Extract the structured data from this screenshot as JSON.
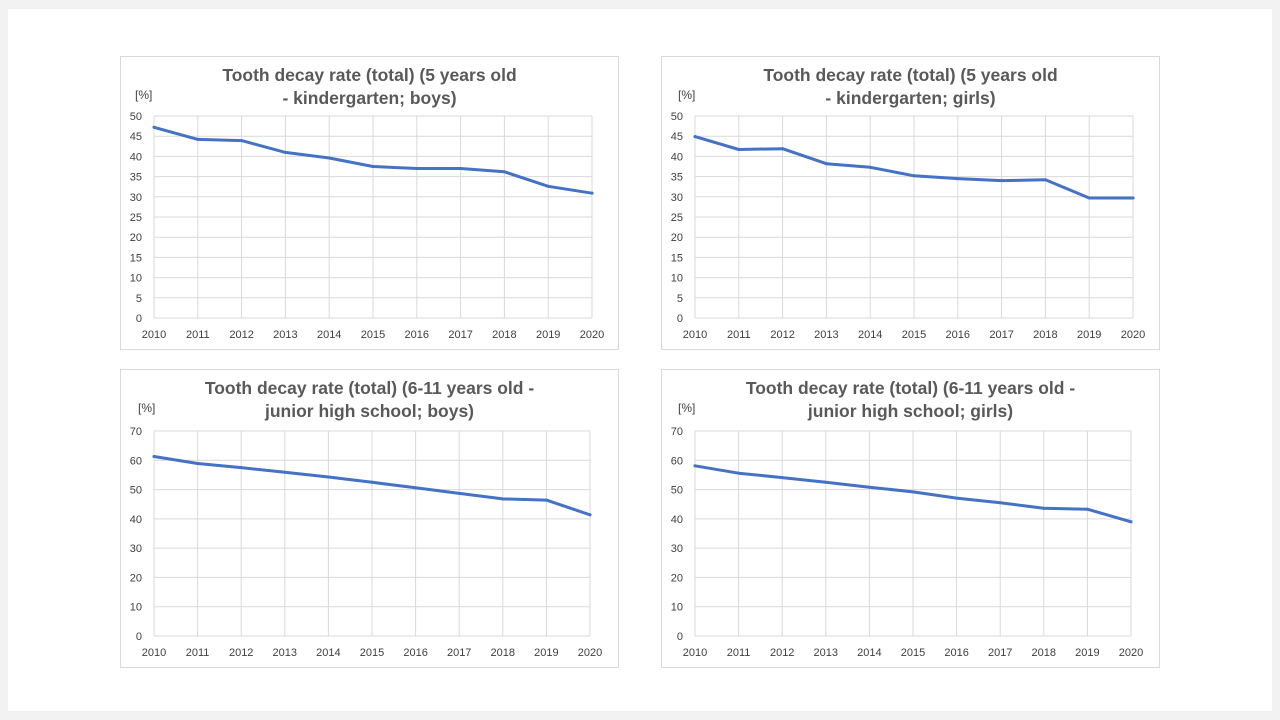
{
  "chart_data": [
    {
      "type": "line",
      "title_lines": [
        "Tooth decay rate (total) (5 years old",
        "- kindergarten; boys)"
      ],
      "ylabel": "[%]",
      "xlabel": "",
      "categories": [
        "2010",
        "2011",
        "2012",
        "2013",
        "2014",
        "2015",
        "2016",
        "2017",
        "2018",
        "2019",
        "2020"
      ],
      "series": [
        {
          "values": [
            47.2,
            44.2,
            43.9,
            41.0,
            39.6,
            37.5,
            37.0,
            37.0,
            36.2,
            32.6,
            30.9
          ]
        }
      ],
      "ylim": [
        0,
        50
      ],
      "yticks": [
        0,
        5,
        10,
        15,
        20,
        25,
        30,
        35,
        40,
        45,
        50
      ],
      "grid": true,
      "legend": "none",
      "line_color": "#4472c4"
    },
    {
      "type": "line",
      "title_lines": [
        "Tooth decay rate (total) (5 years old",
        "- kindergarten; girls)"
      ],
      "ylabel": "[%]",
      "xlabel": "",
      "categories": [
        "2010",
        "2011",
        "2012",
        "2013",
        "2014",
        "2015",
        "2016",
        "2017",
        "2018",
        "2019",
        "2020"
      ],
      "series": [
        {
          "values": [
            44.9,
            41.7,
            41.9,
            38.2,
            37.3,
            35.2,
            34.5,
            34.0,
            34.2,
            29.7,
            29.7
          ]
        }
      ],
      "ylim": [
        0,
        50
      ],
      "yticks": [
        0,
        5,
        10,
        15,
        20,
        25,
        30,
        35,
        40,
        45,
        50
      ],
      "grid": true,
      "legend": "none",
      "line_color": "#4472c4"
    },
    {
      "type": "line",
      "title_lines": [
        "Tooth decay rate (total) (6-11 years old -",
        "junior high school; boys)"
      ],
      "ylabel": "[%]",
      "xlabel": "",
      "categories": [
        "2010",
        "2011",
        "2012",
        "2013",
        "2014",
        "2015",
        "2016",
        "2017",
        "2018",
        "2019",
        "2020"
      ],
      "series": [
        {
          "values": [
            61.3,
            58.9,
            57.5,
            55.9,
            54.3,
            52.5,
            50.6,
            48.7,
            46.8,
            46.4,
            41.4
          ]
        }
      ],
      "ylim": [
        0,
        70
      ],
      "yticks": [
        0,
        10,
        20,
        30,
        40,
        50,
        60,
        70
      ],
      "grid": true,
      "legend": "none",
      "line_color": "#4472c4"
    },
    {
      "type": "line",
      "title_lines": [
        "Tooth decay rate (total) (6-11 years old -",
        "junior high school; girls)"
      ],
      "ylabel": "[%]",
      "xlabel": "",
      "categories": [
        "2010",
        "2011",
        "2012",
        "2013",
        "2014",
        "2015",
        "2016",
        "2017",
        "2018",
        "2019",
        "2020"
      ],
      "series": [
        {
          "values": [
            58.1,
            55.6,
            54.1,
            52.5,
            50.8,
            49.2,
            47.1,
            45.5,
            43.6,
            43.3,
            39.0
          ]
        }
      ],
      "ylim": [
        0,
        70
      ],
      "yticks": [
        0,
        10,
        20,
        30,
        40,
        50,
        60,
        70
      ],
      "grid": true,
      "legend": "none",
      "line_color": "#4472c4"
    }
  ]
}
